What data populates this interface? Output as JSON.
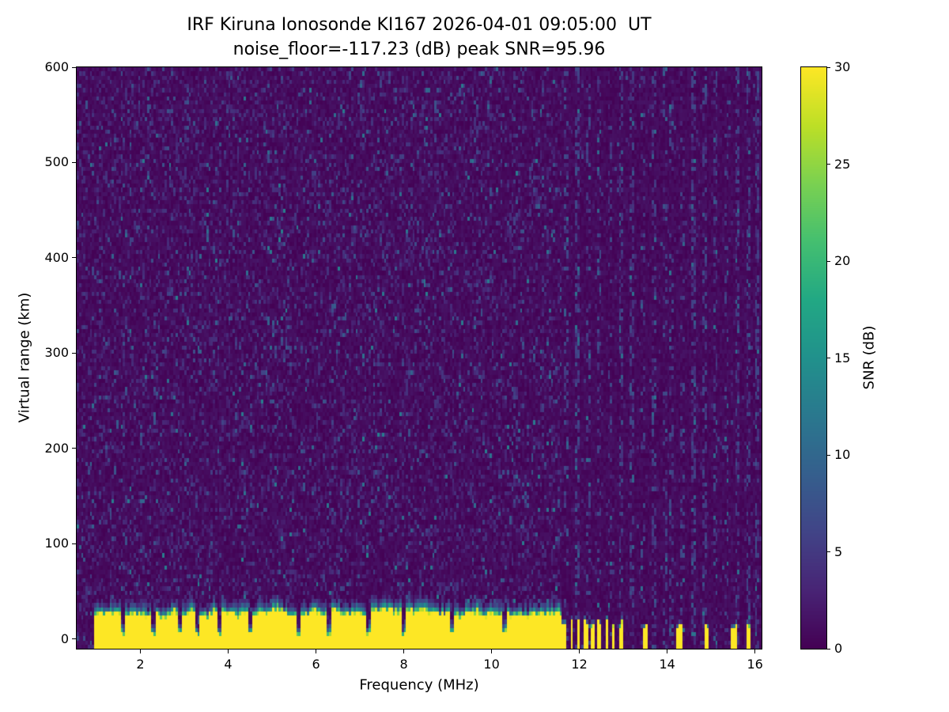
{
  "chart_data": {
    "type": "heatmap",
    "title_line1": "IRF Kiruna Ionosonde KI167 2026-04-01 09:05:00  UT",
    "title_line2": "noise_floor=-117.23 (dB) peak SNR=95.96",
    "station": "IRF Kiruna Ionosonde KI167",
    "timestamp_ut": "2026-04-01 09:05:00",
    "noise_floor_db": -117.23,
    "peak_snr_db": 95.96,
    "xlabel": "Frequency (MHz)",
    "ylabel": "Virtual range (km)",
    "colorbar_label": "SNR (dB)",
    "x_ticks": [
      2,
      4,
      6,
      8,
      10,
      12,
      14,
      16
    ],
    "y_ticks": [
      0,
      100,
      200,
      300,
      400,
      500,
      600
    ],
    "colorbar_ticks": [
      0,
      5,
      10,
      15,
      20,
      25,
      30
    ],
    "xlim": [
      0.55,
      16.15
    ],
    "ylim": [
      -10,
      600
    ],
    "clim": [
      0,
      30
    ],
    "colormap": "viridis",
    "colormap_stops": [
      [
        0.0,
        "#440154"
      ],
      [
        0.1,
        "#482475"
      ],
      [
        0.2,
        "#414487"
      ],
      [
        0.3,
        "#355f8d"
      ],
      [
        0.4,
        "#2a788e"
      ],
      [
        0.5,
        "#21918c"
      ],
      [
        0.6,
        "#22a884"
      ],
      [
        0.7,
        "#44bf70"
      ],
      [
        0.8,
        "#7ad151"
      ],
      [
        0.9,
        "#bddf26"
      ],
      [
        1.0,
        "#fde725"
      ]
    ],
    "features": {
      "background_snr_db": [
        0,
        3
      ],
      "ground_clutter": {
        "freq_start_mhz": 0.95,
        "freq_end_mhz": 11.62,
        "top_km_mean": 26,
        "top_km_min": 14,
        "top_km_max": 34,
        "fringe_km": 10,
        "notch_freqs_mhz": [
          1.6,
          2.32,
          2.9,
          3.32,
          3.82,
          4.5,
          5.62,
          6.32,
          7.18,
          8.02,
          9.12,
          10.32
        ]
      },
      "comb_clutter": {
        "freq_start_mhz": 11.62,
        "freq_end_mhz": 13.05,
        "period_mhz": 0.16,
        "duty": 0.5,
        "top_km": 16
      },
      "sparse_clutter_bars_mhz": [
        13.48,
        14.28,
        14.9,
        15.52,
        15.86
      ],
      "interference_stripes_mhz": [
        11.7,
        11.95,
        12.2,
        12.45,
        12.7,
        12.95,
        13.2,
        13.45,
        13.7,
        13.95,
        14.1,
        14.35,
        14.6,
        14.85,
        15.1,
        15.35,
        15.6,
        15.85,
        16.05
      ],
      "faint_stripes_mhz": [
        3.05,
        7.3,
        10.55
      ],
      "echo_trace": {
        "freq_mhz": 5.2,
        "range_km": 318
      }
    },
    "render": {
      "seed": 20260401,
      "cols": 312,
      "rows": 140
    }
  }
}
